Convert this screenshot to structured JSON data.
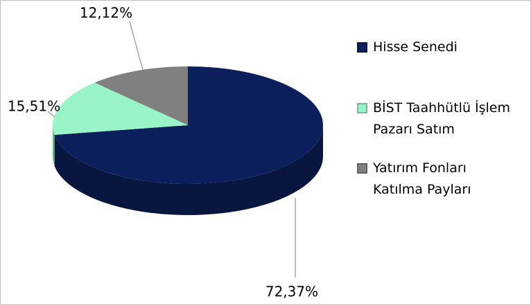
{
  "chart_data": {
    "type": "pie",
    "categories": [
      "Hisse Senedi",
      "BİST Taahhütlü İşlem Pazarı Satım",
      "Yatırım Fonları Katılma Payları"
    ],
    "values": [
      72.37,
      15.51,
      12.12
    ],
    "value_labels": [
      "72,37%",
      "15,51%",
      "12,12%"
    ],
    "colors": [
      "#0b1f5c",
      "#99f5c8",
      "#808080"
    ],
    "legend": "right"
  }
}
